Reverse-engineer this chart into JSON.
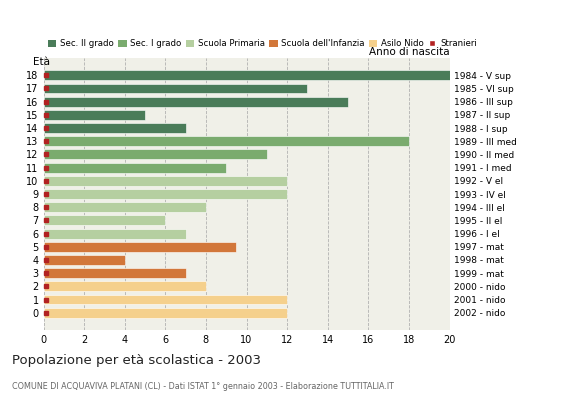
{
  "ages": [
    18,
    17,
    16,
    15,
    14,
    13,
    12,
    11,
    10,
    9,
    8,
    7,
    6,
    5,
    4,
    3,
    2,
    1,
    0
  ],
  "values": [
    20,
    13,
    15,
    5,
    7,
    18,
    11,
    9,
    12,
    12,
    8,
    6,
    7,
    9.5,
    4,
    7,
    8,
    12,
    12
  ],
  "anno_nascita": [
    "1984 - V sup",
    "1985 - VI sup",
    "1986 - III sup",
    "1987 - II sup",
    "1988 - I sup",
    "1989 - III med",
    "1990 - II med",
    "1991 - I med",
    "1992 - V el",
    "1993 - IV el",
    "1994 - III el",
    "1995 - II el",
    "1996 - I el",
    "1997 - mat",
    "1998 - mat",
    "1999 - mat",
    "2000 - nido",
    "2001 - nido",
    "2002 - nido"
  ],
  "bar_colors": [
    "#4a7c59",
    "#4a7c59",
    "#4a7c59",
    "#4a7c59",
    "#4a7c59",
    "#7aab6e",
    "#7aab6e",
    "#7aab6e",
    "#b5cfa0",
    "#b5cfa0",
    "#b5cfa0",
    "#b5cfa0",
    "#b5cfa0",
    "#d2773a",
    "#d2773a",
    "#d2773a",
    "#f5d08c",
    "#f5d08c",
    "#f5d08c"
  ],
  "stranieri_color": "#b22222",
  "title": "Popolazione per età scolastica - 2003",
  "subtitle": "COMUNE DI ACQUAVIVA PLATANI (CL) - Dati ISTAT 1° gennaio 2003 - Elaborazione TUTTITALIA.IT",
  "xlabel_eta": "Età",
  "xlabel_anno": "Anno di nascita",
  "xlim": [
    0,
    20
  ],
  "xticks": [
    0,
    2,
    4,
    6,
    8,
    10,
    12,
    14,
    16,
    18,
    20
  ],
  "legend_labels": [
    "Sec. II grado",
    "Sec. I grado",
    "Scuola Primaria",
    "Scuola dell'Infanzia",
    "Asilo Nido",
    "Stranieri"
  ],
  "legend_colors": [
    "#4a7c59",
    "#7aab6e",
    "#b5cfa0",
    "#d2773a",
    "#f5d08c",
    "#b22222"
  ],
  "bg_color": "#ffffff",
  "plot_bg_color": "#f0f0e8"
}
